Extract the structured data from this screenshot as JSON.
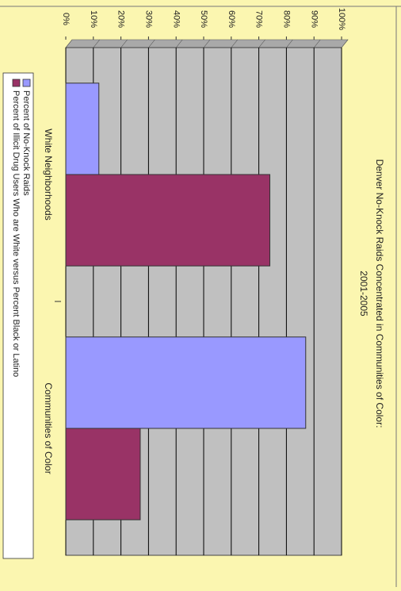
{
  "chart_data": {
    "type": "bar",
    "title": "Denver No-Knock Raids Concentrated in Communities of Color:",
    "subtitle": "2001-2005",
    "categories": [
      "White Neighborhoods",
      "Communities of Color"
    ],
    "series": [
      {
        "name": "Percent of No-Knock Raids",
        "values": [
          12,
          87
        ],
        "color": "#9999ff"
      },
      {
        "name": "Percent of Illicit Drug Users Who are White versus Percent Black or Latino",
        "values": [
          74,
          27
        ],
        "color": "#993366"
      }
    ],
    "value_ticks": [
      "0%",
      "10%",
      "20%",
      "30%",
      "40%",
      "50%",
      "60%",
      "70%",
      "80%",
      "90%",
      "100%"
    ],
    "ylim": [
      0,
      100
    ],
    "grid": true,
    "legend_position": "bottom",
    "orientation": "rotated-90-clockwise",
    "colors": {
      "background": "#fbf6b0",
      "plot_area": "#c0c0c0",
      "gridline": "#000000"
    }
  }
}
